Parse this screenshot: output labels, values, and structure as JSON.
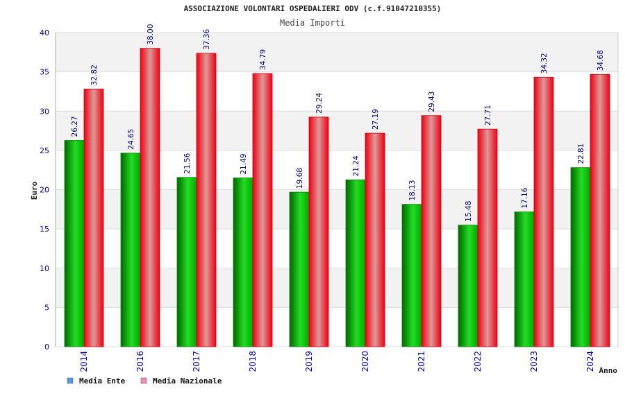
{
  "chart_data": {
    "type": "bar",
    "title": "ASSOCIAZIONE VOLONTARI OSPEDALIERI ODV (c.f.91047210355)",
    "subtitle": "Media Importi",
    "xlabel": "Anno",
    "ylabel": "Euro",
    "ylim": [
      0,
      40
    ],
    "yticks": [
      "0",
      "5",
      "10",
      "15",
      "20",
      "25",
      "30",
      "35",
      "40"
    ],
    "categories": [
      "2014",
      "2016",
      "2017",
      "2018",
      "2019",
      "2020",
      "2021",
      "2022",
      "2023",
      "2024"
    ],
    "series": [
      {
        "name": "Media Ente",
        "color": "#00cc00",
        "values": [
          26.27,
          24.65,
          21.56,
          21.49,
          19.68,
          21.24,
          18.13,
          15.48,
          17.16,
          22.81
        ],
        "labels": [
          "26.27",
          "24.65",
          "21.56",
          "21.49",
          "19.68",
          "21.24",
          "18.13",
          "15.48",
          "17.16",
          "22.81"
        ]
      },
      {
        "name": "Media Nazionale",
        "color": "#ee1122",
        "values": [
          32.82,
          38.0,
          37.36,
          34.79,
          29.24,
          27.19,
          29.43,
          27.71,
          34.32,
          34.68
        ],
        "labels": [
          "32.82",
          "38.00",
          "37.36",
          "34.79",
          "29.24",
          "27.19",
          "29.43",
          "27.71",
          "34.32",
          "34.68"
        ]
      }
    ],
    "legend": {
      "placement": "bottom-left",
      "items": [
        {
          "label": "Media Ente",
          "color": "#5599ee"
        },
        {
          "label": "Media Nazionale",
          "color": "#ee88bb"
        }
      ]
    },
    "grid": true,
    "band_colors": [
      "#f2f2f2",
      "#ffffff"
    ]
  }
}
